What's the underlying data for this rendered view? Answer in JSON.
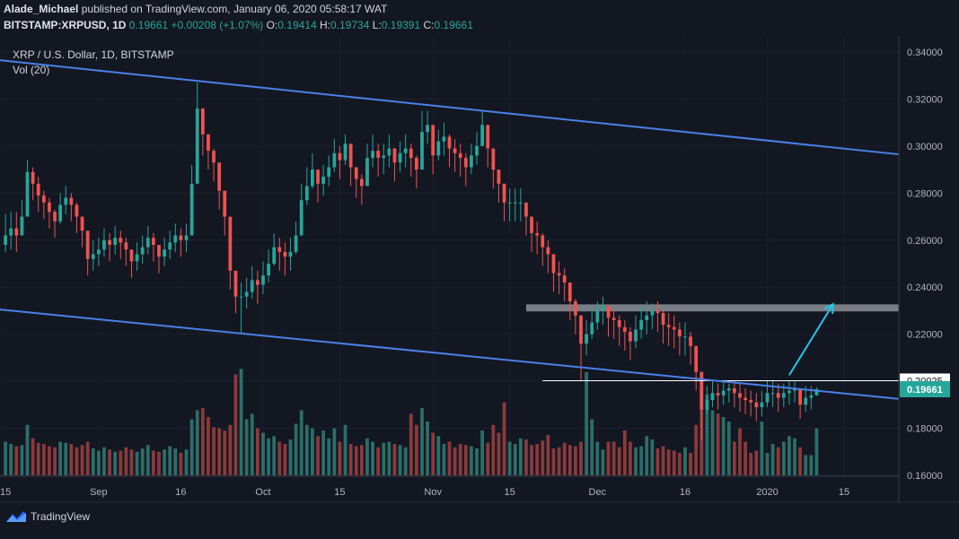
{
  "header": {
    "author": "Alade_Michael",
    "published_text": "published on TradingView.com, January 06, 2020 05:58:17 WAT",
    "symbol_line": "BITSTAMP:XRPUSD, 1D",
    "last": "0.19661",
    "change": "+0.00208 (+1.07%)",
    "open_label": "O:",
    "open": "0.19414",
    "high_label": "H:",
    "high": "0.19734",
    "low_label": "L:",
    "low": "0.19391",
    "close_label": "C:",
    "close": "0.19661"
  },
  "chart_data": {
    "type": "candlestick",
    "title": "XRP / U.S. Dollar, 1D, BITSTAMP",
    "volume_label": "Vol (20)",
    "y_ticks": [
      "0.34000",
      "0.32000",
      "0.30000",
      "0.28000",
      "0.26000",
      "0.24000",
      "0.22000",
      "0.20000",
      "0.18000",
      "0.16000"
    ],
    "y_tick_values": [
      0.34,
      0.32,
      0.3,
      0.28,
      0.26,
      0.24,
      0.22,
      0.2,
      0.18,
      0.16
    ],
    "ylim": [
      0.16,
      0.344
    ],
    "x_ticks": [
      {
        "label": "15",
        "day": 0
      },
      {
        "label": "Sep",
        "day": 17
      },
      {
        "label": "16",
        "day": 32
      },
      {
        "label": "Oct",
        "day": 47
      },
      {
        "label": "15",
        "day": 61
      },
      {
        "label": "Nov",
        "day": 78
      },
      {
        "label": "15",
        "day": 92
      },
      {
        "label": "Dec",
        "day": 108
      },
      {
        "label": "16",
        "day": 124
      },
      {
        "label": "2020",
        "day": 139
      },
      {
        "label": "15",
        "day": 153
      }
    ],
    "days_span": [
      -1,
      163
    ],
    "candles_start_day": 0,
    "closes": [
      0.262,
      0.265,
      0.262,
      0.27,
      0.289,
      0.284,
      0.279,
      0.276,
      0.272,
      0.268,
      0.275,
      0.278,
      0.275,
      0.27,
      0.264,
      0.252,
      0.254,
      0.256,
      0.26,
      0.258,
      0.261,
      0.259,
      0.256,
      0.251,
      0.254,
      0.257,
      0.261,
      0.258,
      0.253,
      0.256,
      0.259,
      0.262,
      0.26,
      0.262,
      0.284,
      0.316,
      0.305,
      0.298,
      0.293,
      0.281,
      0.27,
      0.247,
      0.236,
      0.236,
      0.238,
      0.243,
      0.241,
      0.245,
      0.25,
      0.257,
      0.255,
      0.253,
      0.255,
      0.262,
      0.277,
      0.283,
      0.29,
      0.284,
      0.287,
      0.291,
      0.297,
      0.294,
      0.301,
      0.291,
      0.286,
      0.283,
      0.295,
      0.298,
      0.295,
      0.296,
      0.299,
      0.293,
      0.297,
      0.299,
      0.295,
      0.29,
      0.306,
      0.309,
      0.296,
      0.302,
      0.304,
      0.299,
      0.297,
      0.295,
      0.291,
      0.296,
      0.3,
      0.309,
      0.299,
      0.29,
      0.284,
      0.276,
      0.276,
      0.276,
      0.276,
      0.27,
      0.263,
      0.262,
      0.257,
      0.254,
      0.246,
      0.245,
      0.242,
      0.234,
      0.228,
      0.216,
      0.22,
      0.225,
      0.23,
      0.232,
      0.227,
      0.226,
      0.223,
      0.221,
      0.217,
      0.222,
      0.226,
      0.228,
      0.23,
      0.229,
      0.224,
      0.223,
      0.222,
      0.219,
      0.219,
      0.215,
      0.204,
      0.188,
      0.192,
      0.195,
      0.194,
      0.196,
      0.197,
      0.195,
      0.193,
      0.192,
      0.191,
      0.189,
      0.191,
      0.195,
      0.195,
      0.193,
      0.195,
      0.196,
      0.197,
      0.19,
      0.193,
      0.194,
      0.19661
    ],
    "highs": [
      0.271,
      0.272,
      0.272,
      0.277,
      0.294,
      0.291,
      0.287,
      0.281,
      0.278,
      0.273,
      0.28,
      0.283,
      0.28,
      0.276,
      0.27,
      0.257,
      0.26,
      0.261,
      0.265,
      0.263,
      0.266,
      0.264,
      0.261,
      0.256,
      0.259,
      0.262,
      0.266,
      0.263,
      0.258,
      0.261,
      0.264,
      0.267,
      0.265,
      0.267,
      0.292,
      0.327,
      0.311,
      0.304,
      0.299,
      0.287,
      0.276,
      0.253,
      0.242,
      0.242,
      0.244,
      0.249,
      0.247,
      0.251,
      0.256,
      0.263,
      0.261,
      0.259,
      0.261,
      0.268,
      0.284,
      0.291,
      0.297,
      0.29,
      0.292,
      0.296,
      0.303,
      0.3,
      0.305,
      0.297,
      0.291,
      0.288,
      0.301,
      0.305,
      0.301,
      0.301,
      0.305,
      0.299,
      0.302,
      0.305,
      0.301,
      0.296,
      0.315,
      0.315,
      0.302,
      0.307,
      0.31,
      0.305,
      0.303,
      0.301,
      0.297,
      0.301,
      0.306,
      0.315,
      0.305,
      0.296,
      0.29,
      0.282,
      0.282,
      0.282,
      0.282,
      0.276,
      0.269,
      0.268,
      0.263,
      0.26,
      0.252,
      0.251,
      0.248,
      0.24,
      0.235,
      0.223,
      0.226,
      0.232,
      0.234,
      0.236,
      0.232,
      0.231,
      0.228,
      0.226,
      0.223,
      0.228,
      0.232,
      0.234,
      0.233,
      0.234,
      0.23,
      0.229,
      0.228,
      0.225,
      0.225,
      0.221,
      0.211,
      0.199,
      0.198,
      0.2,
      0.199,
      0.2,
      0.199,
      0.2,
      0.199,
      0.197,
      0.196,
      0.195,
      0.196,
      0.2,
      0.2,
      0.199,
      0.199,
      0.2,
      0.2,
      0.197,
      0.198,
      0.198,
      0.19734
    ],
    "lows": [
      0.255,
      0.256,
      0.255,
      0.262,
      0.279,
      0.277,
      0.272,
      0.269,
      0.265,
      0.261,
      0.267,
      0.271,
      0.268,
      0.263,
      0.257,
      0.245,
      0.247,
      0.249,
      0.253,
      0.251,
      0.254,
      0.252,
      0.249,
      0.244,
      0.247,
      0.25,
      0.254,
      0.251,
      0.246,
      0.249,
      0.252,
      0.255,
      0.253,
      0.255,
      0.274,
      0.299,
      0.296,
      0.29,
      0.285,
      0.273,
      0.262,
      0.239,
      0.229,
      0.22,
      0.231,
      0.235,
      0.233,
      0.237,
      0.242,
      0.249,
      0.247,
      0.245,
      0.247,
      0.254,
      0.269,
      0.275,
      0.282,
      0.276,
      0.279,
      0.283,
      0.289,
      0.286,
      0.292,
      0.283,
      0.278,
      0.275,
      0.285,
      0.291,
      0.287,
      0.288,
      0.291,
      0.285,
      0.289,
      0.291,
      0.287,
      0.282,
      0.299,
      0.301,
      0.288,
      0.294,
      0.296,
      0.291,
      0.289,
      0.287,
      0.283,
      0.288,
      0.292,
      0.301,
      0.291,
      0.282,
      0.276,
      0.268,
      0.268,
      0.268,
      0.268,
      0.262,
      0.255,
      0.254,
      0.249,
      0.246,
      0.238,
      0.237,
      0.234,
      0.226,
      0.22,
      0.2,
      0.211,
      0.218,
      0.222,
      0.224,
      0.219,
      0.218,
      0.215,
      0.213,
      0.209,
      0.214,
      0.218,
      0.22,
      0.222,
      0.221,
      0.216,
      0.215,
      0.214,
      0.211,
      0.211,
      0.207,
      0.196,
      0.175,
      0.186,
      0.189,
      0.188,
      0.19,
      0.191,
      0.189,
      0.187,
      0.186,
      0.185,
      0.183,
      0.185,
      0.189,
      0.189,
      0.187,
      0.189,
      0.19,
      0.191,
      0.184,
      0.187,
      0.188,
      0.19391
    ],
    "volumes": [
      0.3,
      0.28,
      0.26,
      0.27,
      0.45,
      0.33,
      0.29,
      0.28,
      0.26,
      0.25,
      0.3,
      0.29,
      0.28,
      0.25,
      0.27,
      0.3,
      0.24,
      0.22,
      0.25,
      0.23,
      0.21,
      0.22,
      0.25,
      0.23,
      0.21,
      0.24,
      0.27,
      0.22,
      0.21,
      0.23,
      0.26,
      0.24,
      0.2,
      0.23,
      0.5,
      0.58,
      0.6,
      0.52,
      0.43,
      0.42,
      0.4,
      0.45,
      0.9,
      0.95,
      0.5,
      0.55,
      0.42,
      0.38,
      0.33,
      0.35,
      0.3,
      0.28,
      0.32,
      0.46,
      0.58,
      0.45,
      0.42,
      0.35,
      0.4,
      0.33,
      0.42,
      0.3,
      0.45,
      0.28,
      0.26,
      0.27,
      0.33,
      0.3,
      0.25,
      0.29,
      0.3,
      0.28,
      0.27,
      0.25,
      0.55,
      0.45,
      0.6,
      0.48,
      0.38,
      0.35,
      0.28,
      0.3,
      0.25,
      0.28,
      0.27,
      0.26,
      0.24,
      0.4,
      0.29,
      0.45,
      0.38,
      0.65,
      0.3,
      0.28,
      0.33,
      0.32,
      0.27,
      0.28,
      0.31,
      0.36,
      0.24,
      0.25,
      0.29,
      0.27,
      0.26,
      0.3,
      0.92,
      0.5,
      0.3,
      0.23,
      0.3,
      0.3,
      0.25,
      0.4,
      0.3,
      0.25,
      0.26,
      0.35,
      0.32,
      0.24,
      0.26,
      0.23,
      0.22,
      0.2,
      0.25,
      0.2,
      0.45,
      0.9,
      0.72,
      0.58,
      0.55,
      0.52,
      0.48,
      0.3,
      0.42,
      0.3,
      0.2,
      0.22,
      0.48,
      0.2,
      0.28,
      0.25,
      0.3,
      0.35,
      0.33,
      0.25,
      0.18,
      0.18,
      0.42,
      0.18,
      0.05
    ],
    "annotations": {
      "upper_trendline": [
        [
          -1,
          0.3365
        ],
        [
          163,
          0.2965
        ]
      ],
      "lower_trendline": [
        [
          -1,
          0.2305
        ],
        [
          163,
          0.1925
        ]
      ],
      "resistance_zone": {
        "from_day": 95,
        "to_day": 163,
        "low": 0.2297,
        "high": 0.2327
      },
      "support_level": {
        "value": 0.20025,
        "from_day": 98,
        "label": "0.20025"
      },
      "projection_arrow": {
        "from": [
          143,
          0.2026
        ],
        "to": [
          151,
          0.2328
        ]
      }
    },
    "price_labels": {
      "last_price": "0.19661",
      "support": "0.20025"
    },
    "colors": {
      "up": "#26a69a",
      "down": "#ef5350",
      "vol_up": "#2b6e68",
      "vol_down": "#8a3a3b",
      "trendline": "#4b80e8",
      "arrow": "#22c7e6",
      "zone": "#8c8f97",
      "bg": "#131722",
      "axis_text": "#b2b5be"
    }
  },
  "footer": {
    "brand": "TradingView"
  }
}
